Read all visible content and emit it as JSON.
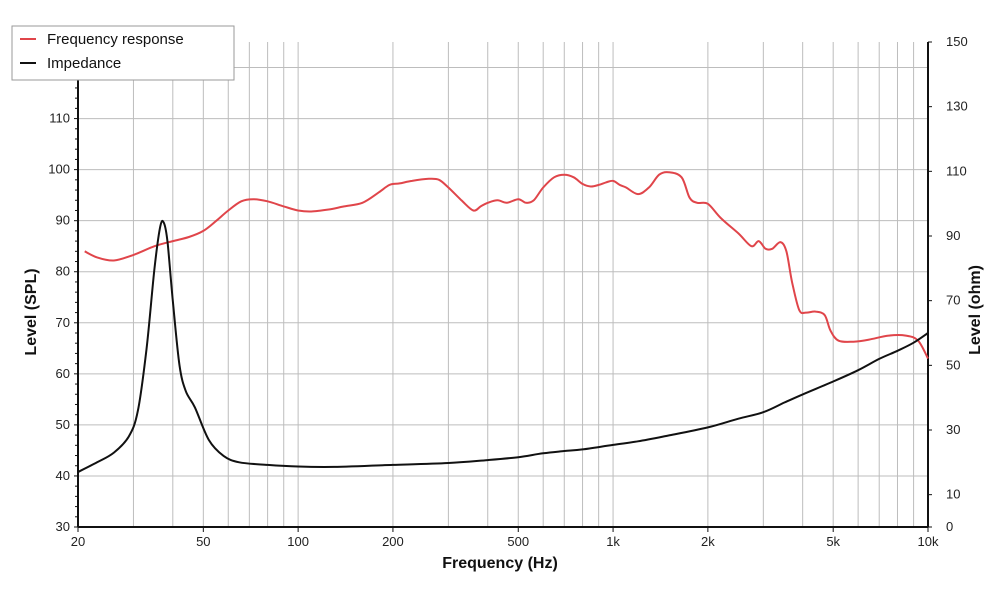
{
  "chart_data": {
    "type": "line",
    "xlabel": "Frequency (Hz)",
    "ylabel_left": "Level (SPL)",
    "ylabel_right": "Level (ohm)",
    "x_scale": "log",
    "xlim": [
      20,
      10000
    ],
    "ylim_left": [
      30,
      125
    ],
    "ylim_right": [
      0,
      150
    ],
    "grid": true,
    "legend_position": "top-left",
    "x_ticks": [
      {
        "value": 20,
        "label": "20"
      },
      {
        "value": 50,
        "label": "50"
      },
      {
        "value": 100,
        "label": "100"
      },
      {
        "value": 200,
        "label": "200"
      },
      {
        "value": 500,
        "label": "500"
      },
      {
        "value": 1000,
        "label": "1k"
      },
      {
        "value": 2000,
        "label": "2k"
      },
      {
        "value": 5000,
        "label": "5k"
      },
      {
        "value": 10000,
        "label": "10k"
      }
    ],
    "y_ticks_left": [
      30,
      40,
      50,
      60,
      70,
      80,
      90,
      100,
      110,
      120
    ],
    "y_ticks_right": [
      0,
      10,
      30,
      50,
      70,
      90,
      110,
      130,
      150
    ],
    "series": [
      {
        "name": "Frequency response",
        "color": "#e0454a",
        "axis": "left",
        "points": [
          [
            21,
            84
          ],
          [
            23,
            82.8
          ],
          [
            26,
            82.2
          ],
          [
            30,
            83.3
          ],
          [
            35,
            85
          ],
          [
            40,
            86
          ],
          [
            45,
            86.8
          ],
          [
            50,
            88
          ],
          [
            55,
            90
          ],
          [
            60,
            92
          ],
          [
            66,
            93.8
          ],
          [
            72,
            94.2
          ],
          [
            80,
            93.8
          ],
          [
            90,
            92.8
          ],
          [
            100,
            92
          ],
          [
            110,
            91.8
          ],
          [
            125,
            92.2
          ],
          [
            140,
            92.8
          ],
          [
            160,
            93.5
          ],
          [
            180,
            95.5
          ],
          [
            195,
            97
          ],
          [
            210,
            97.3
          ],
          [
            230,
            97.8
          ],
          [
            260,
            98.2
          ],
          [
            280,
            98
          ],
          [
            300,
            96.5
          ],
          [
            330,
            94
          ],
          [
            360,
            92
          ],
          [
            380,
            92.8
          ],
          [
            400,
            93.5
          ],
          [
            430,
            94
          ],
          [
            460,
            93.5
          ],
          [
            500,
            94.2
          ],
          [
            530,
            93.5
          ],
          [
            560,
            94
          ],
          [
            600,
            96.5
          ],
          [
            650,
            98.5
          ],
          [
            700,
            99
          ],
          [
            750,
            98.5
          ],
          [
            800,
            97.2
          ],
          [
            850,
            96.7
          ],
          [
            900,
            97
          ],
          [
            950,
            97.5
          ],
          [
            1000,
            97.8
          ],
          [
            1050,
            97
          ],
          [
            1100,
            96.5
          ],
          [
            1200,
            95.2
          ],
          [
            1300,
            96.5
          ],
          [
            1400,
            99
          ],
          [
            1500,
            99.5
          ],
          [
            1650,
            98.5
          ],
          [
            1750,
            94.5
          ],
          [
            1850,
            93.5
          ],
          [
            2000,
            93.3
          ],
          [
            2200,
            90.5
          ],
          [
            2500,
            87.5
          ],
          [
            2750,
            85
          ],
          [
            2900,
            86
          ],
          [
            3050,
            84.5
          ],
          [
            3200,
            84.5
          ],
          [
            3400,
            85.8
          ],
          [
            3550,
            84
          ],
          [
            3700,
            78
          ],
          [
            3900,
            72.5
          ],
          [
            4100,
            72
          ],
          [
            4400,
            72.2
          ],
          [
            4700,
            71.5
          ],
          [
            4900,
            68.5
          ],
          [
            5200,
            66.5
          ],
          [
            5800,
            66.3
          ],
          [
            6500,
            66.7
          ],
          [
            7500,
            67.5
          ],
          [
            8500,
            67.5
          ],
          [
            9300,
            66.5
          ],
          [
            10000,
            63
          ]
        ]
      },
      {
        "name": "Impedance",
        "color": "#111111",
        "axis": "right",
        "points": [
          [
            20,
            17
          ],
          [
            23,
            20
          ],
          [
            26,
            23
          ],
          [
            29,
            28
          ],
          [
            31,
            36
          ],
          [
            33,
            55
          ],
          [
            35,
            80
          ],
          [
            36.5,
            93
          ],
          [
            37.5,
            94
          ],
          [
            38.5,
            88
          ],
          [
            40,
            70
          ],
          [
            42,
            50
          ],
          [
            44,
            42
          ],
          [
            47,
            37
          ],
          [
            52,
            27
          ],
          [
            58,
            22
          ],
          [
            65,
            20
          ],
          [
            80,
            19.2
          ],
          [
            100,
            18.7
          ],
          [
            130,
            18.6
          ],
          [
            200,
            19.2
          ],
          [
            300,
            19.8
          ],
          [
            400,
            20.7
          ],
          [
            500,
            21.6
          ],
          [
            600,
            22.8
          ],
          [
            700,
            23.5
          ],
          [
            800,
            24
          ],
          [
            1000,
            25.4
          ],
          [
            1200,
            26.5
          ],
          [
            1500,
            28.3
          ],
          [
            2000,
            30.8
          ],
          [
            2500,
            33.5
          ],
          [
            3000,
            35.5
          ],
          [
            3500,
            38.5
          ],
          [
            4000,
            41
          ],
          [
            5000,
            45
          ],
          [
            6000,
            48.5
          ],
          [
            7000,
            52
          ],
          [
            8000,
            54.5
          ],
          [
            9000,
            57
          ],
          [
            10000,
            60
          ]
        ]
      }
    ]
  }
}
